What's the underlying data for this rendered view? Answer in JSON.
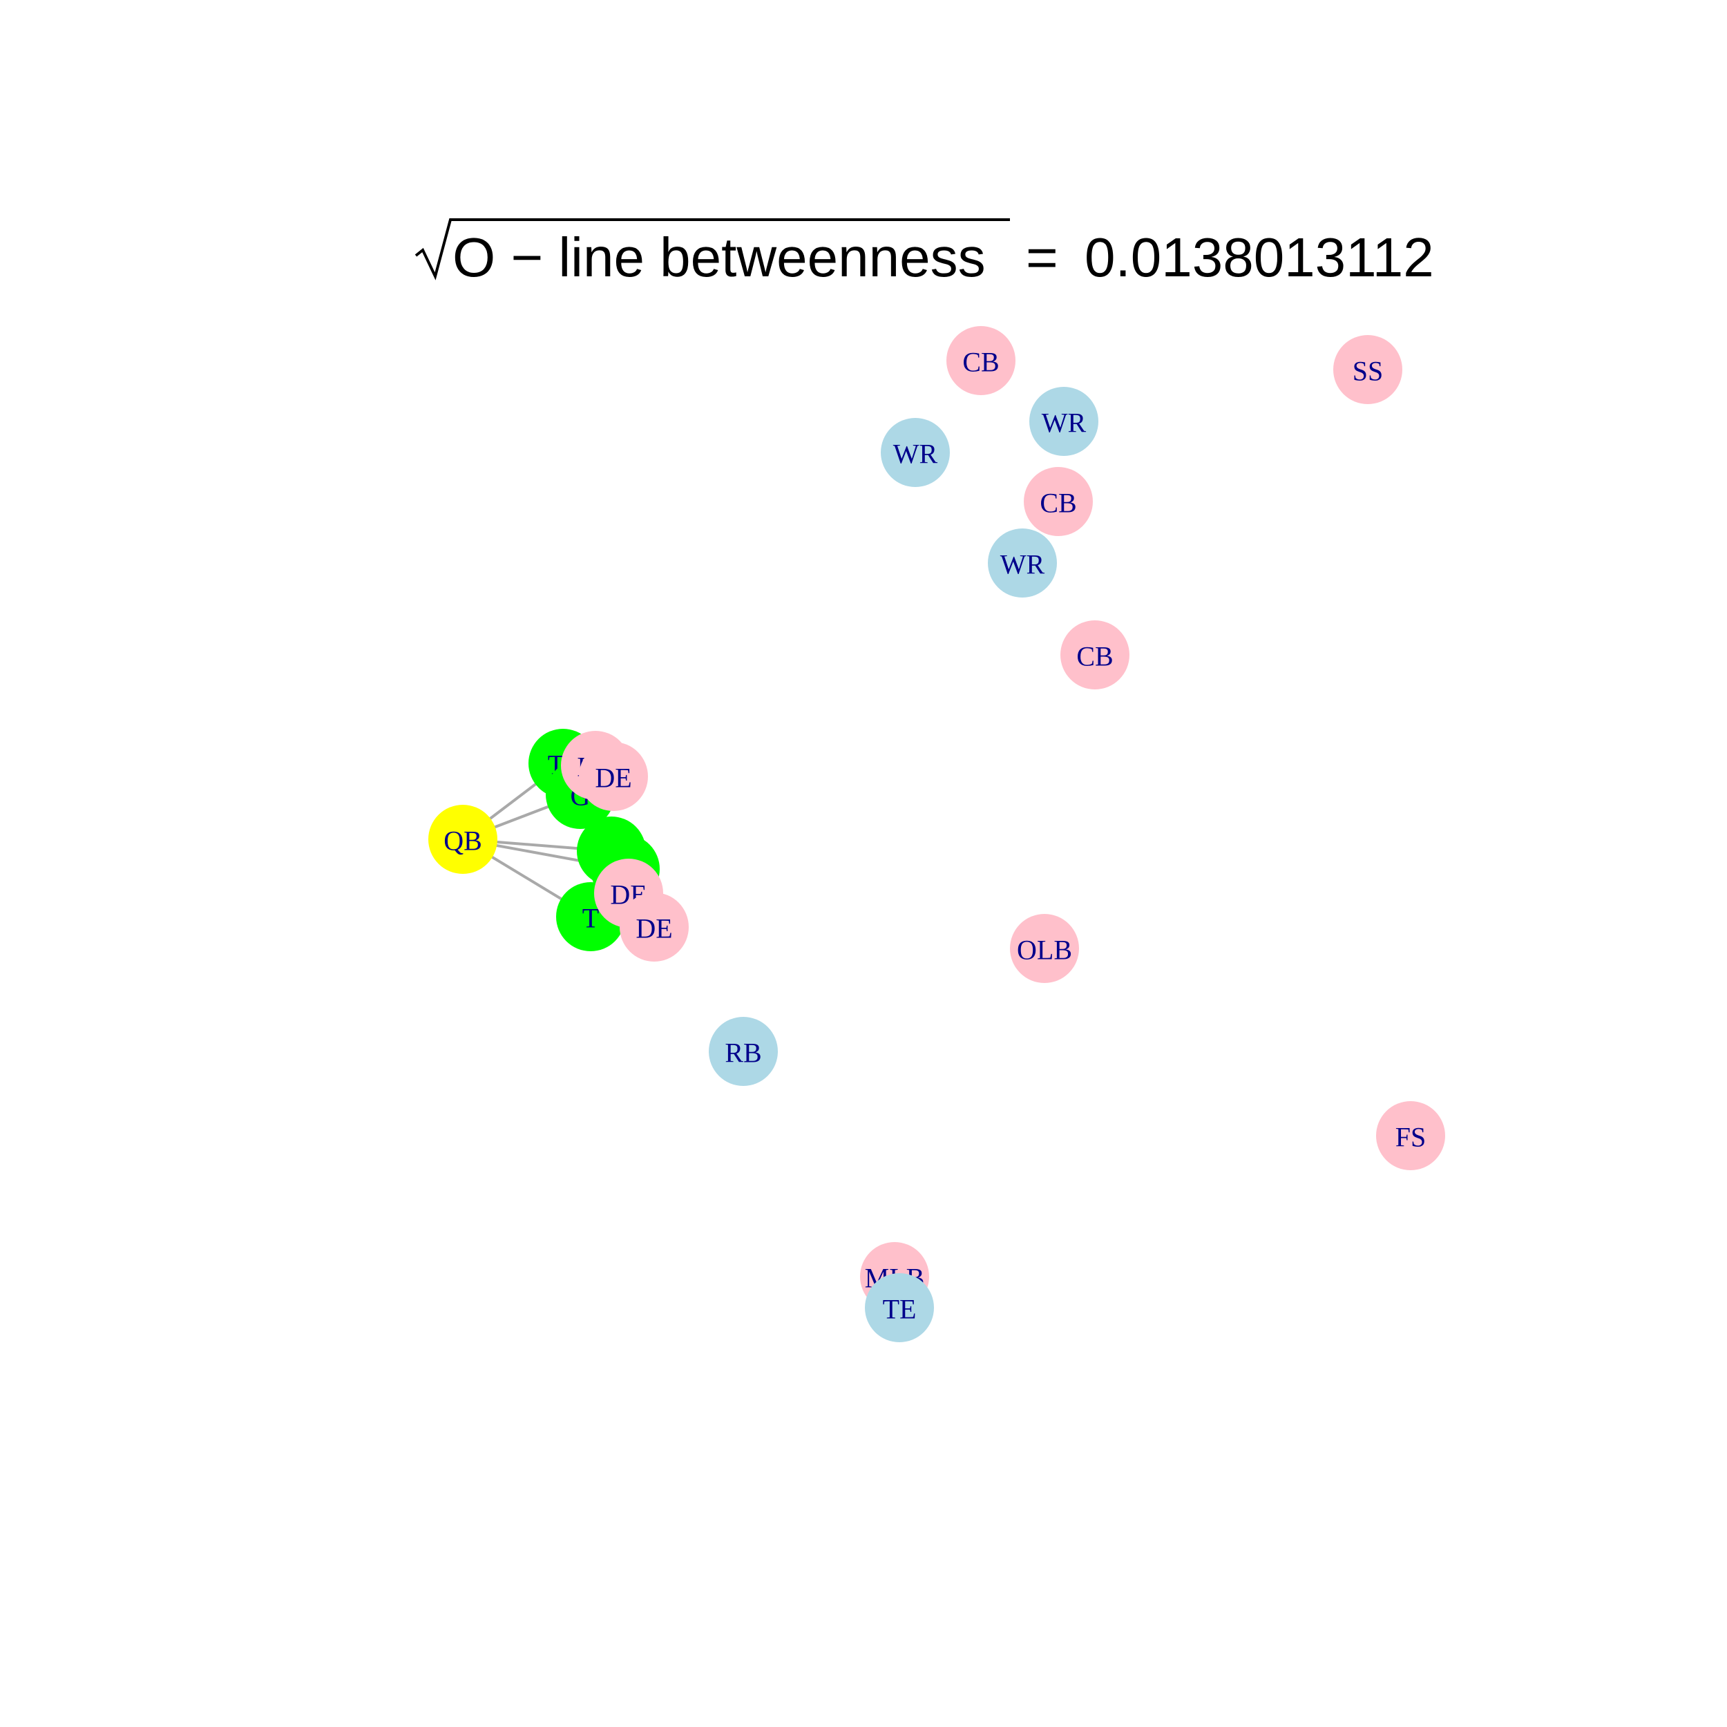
{
  "title": {
    "radical_term": "O − line  betweenness",
    "equals": "=",
    "value": "0.0138013112"
  },
  "legend_colors": {
    "quarterback": "#ffff00",
    "offensive_line": "#00ff00",
    "offense_skill": "#add8e6",
    "defense": "#ffc0cb",
    "edge": "#a9a9a9",
    "label": "#00008b"
  },
  "nodes": [
    {
      "id": "n-ss",
      "label": "SS",
      "group": "defense"
    },
    {
      "id": "n-cb1",
      "label": "CB",
      "group": "defense"
    },
    {
      "id": "n-wr1",
      "label": "WR",
      "group": "offense_skill"
    },
    {
      "id": "n-wr2",
      "label": "WR",
      "group": "offense_skill"
    },
    {
      "id": "n-cb2",
      "label": "CB",
      "group": "defense"
    },
    {
      "id": "n-wr3",
      "label": "WR",
      "group": "offense_skill"
    },
    {
      "id": "n-cb3",
      "label": "CB",
      "group": "defense"
    },
    {
      "id": "n-olb",
      "label": "OLB",
      "group": "defense"
    },
    {
      "id": "n-rb",
      "label": "RB",
      "group": "offense_skill"
    },
    {
      "id": "n-fs",
      "label": "FS",
      "group": "defense"
    },
    {
      "id": "n-mlb",
      "label": "MLB",
      "group": "defense"
    },
    {
      "id": "n-te",
      "label": "TE",
      "group": "offense_skill"
    },
    {
      "id": "n-qb",
      "label": "QB",
      "group": "quarterback"
    },
    {
      "id": "n-t1",
      "label": "T",
      "group": "offensive_line"
    },
    {
      "id": "n-g1",
      "label": "G",
      "group": "offensive_line"
    },
    {
      "id": "n-c",
      "label": "C",
      "group": "offensive_line"
    },
    {
      "id": "n-g2",
      "label": "G",
      "group": "offensive_line"
    },
    {
      "id": "n-t2",
      "label": "T",
      "group": "offensive_line"
    },
    {
      "id": "n-dt",
      "label": "DT",
      "group": "defense"
    },
    {
      "id": "n-de1",
      "label": "DE",
      "group": "defense"
    },
    {
      "id": "n-de2",
      "label": "DE",
      "group": "defense"
    },
    {
      "id": "n-de3",
      "label": "DE",
      "group": "defense"
    }
  ],
  "edges": [
    {
      "from": "n-qb",
      "to": "n-t1"
    },
    {
      "from": "n-qb",
      "to": "n-g1"
    },
    {
      "from": "n-qb",
      "to": "n-c"
    },
    {
      "from": "n-qb",
      "to": "n-g2"
    },
    {
      "from": "n-qb",
      "to": "n-t2"
    }
  ]
}
